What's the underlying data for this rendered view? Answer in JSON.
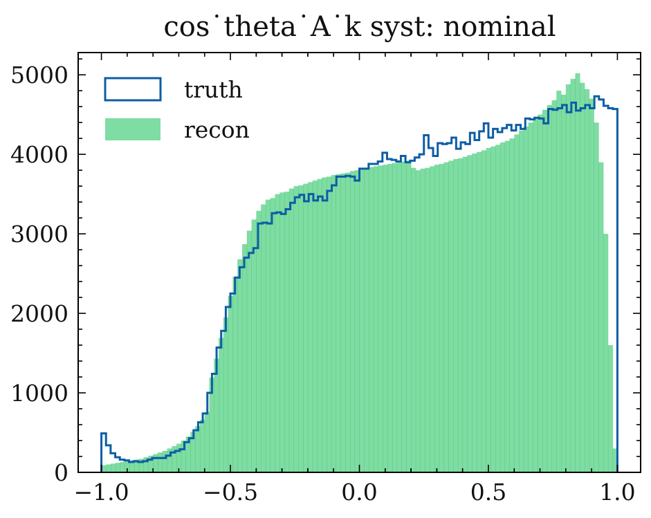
{
  "chart_data": {
    "type": "histogram",
    "title": "cos˙theta˙A˙k syst: nominal",
    "xlabel": "",
    "ylabel": "",
    "xlim": [
      -1.09,
      1.09
    ],
    "ylim": [
      0,
      5280
    ],
    "x_ticks": [
      -1.0,
      -0.5,
      0.0,
      0.5,
      1.0
    ],
    "x_tick_labels": [
      "−1.0",
      "−0.5",
      "0.0",
      "0.5",
      "1.0"
    ],
    "y_ticks": [
      0,
      1000,
      2000,
      3000,
      4000,
      5000
    ],
    "y_tick_labels": [
      "0",
      "1000",
      "2000",
      "3000",
      "4000",
      "5000"
    ],
    "grid": false,
    "legend_position": "top-left",
    "bin_range": [
      -1.0,
      1.0
    ],
    "series": [
      {
        "name": "truth",
        "style": "step",
        "color": "#0C5DA5",
        "values": [
          490,
          340,
          240,
          190,
          160,
          150,
          130,
          140,
          130,
          140,
          160,
          180,
          180,
          180,
          210,
          250,
          270,
          290,
          380,
          430,
          530,
          630,
          740,
          1000,
          1240,
          1570,
          1780,
          2080,
          2250,
          2450,
          2580,
          2700,
          2760,
          2820,
          3130,
          3140,
          3130,
          3260,
          3270,
          3250,
          3310,
          3390,
          3460,
          3490,
          3410,
          3500,
          3420,
          3470,
          3420,
          3540,
          3610,
          3720,
          3720,
          3730,
          3720,
          3670,
          3820,
          3820,
          3880,
          3880,
          3910,
          4020,
          3940,
          3930,
          3910,
          3980,
          3900,
          3920,
          3960,
          4000,
          4240,
          4080,
          3980,
          4140,
          4130,
          4140,
          4210,
          4070,
          4150,
          4130,
          4270,
          4180,
          4290,
          4390,
          4210,
          4320,
          4280,
          4330,
          4370,
          4300,
          4370,
          4320,
          4450,
          4440,
          4460,
          4450,
          4390,
          4570,
          4560,
          4580,
          4620,
          4530,
          4650,
          4550,
          4580,
          4620,
          4580,
          4730,
          4690,
          4610,
          4580,
          4570
        ]
      },
      {
        "name": "recon",
        "style": "filled",
        "color": "#00B945",
        "alpha": 0.5,
        "values": [
          90,
          100,
          110,
          120,
          130,
          140,
          150,
          160,
          170,
          190,
          210,
          230,
          250,
          270,
          300,
          330,
          360,
          400,
          450,
          510,
          580,
          660,
          760,
          1190,
          1430,
          1690,
          1950,
          2220,
          2460,
          2680,
          2870,
          3040,
          3180,
          3290,
          3370,
          3430,
          3450,
          3500,
          3520,
          3530,
          3570,
          3600,
          3610,
          3630,
          3650,
          3670,
          3690,
          3710,
          3720,
          3740,
          3750,
          3760,
          3770,
          3790,
          3800,
          3810,
          3830,
          3840,
          3850,
          3860,
          3870,
          3880,
          3890,
          3900,
          3910,
          3920,
          3830,
          3800,
          3820,
          3830,
          3850,
          3870,
          3880,
          3900,
          3920,
          3940,
          3950,
          3970,
          3990,
          4010,
          4030,
          4050,
          4080,
          4100,
          4120,
          4150,
          4170,
          4200,
          4250,
          4300,
          4350,
          4400,
          4450,
          4500,
          4560,
          4620,
          4680,
          4800,
          4750,
          4880,
          4950,
          5020,
          4900,
          4820,
          4700,
          4400,
          3900,
          3000,
          1600,
          300
        ]
      }
    ]
  },
  "legend": {
    "items": [
      {
        "label": "truth",
        "kind": "step-outline"
      },
      {
        "label": "recon",
        "kind": "filled-patch"
      }
    ]
  }
}
